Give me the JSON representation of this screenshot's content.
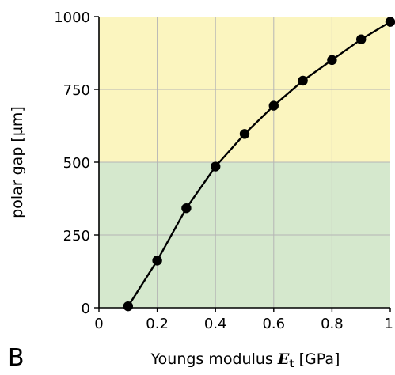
{
  "panel_label": "B",
  "chart_data": {
    "type": "line",
    "xlabel_prefix": "Youngs modulus ",
    "xlabel_symbol": "E",
    "xlabel_subscript": "t",
    "xlabel_unit": " [GPa]",
    "xlabel": "Youngs modulus Et [GPa]",
    "ylabel": "polar gap [µm]",
    "xlim": [
      0,
      1
    ],
    "ylim": [
      0,
      1000
    ],
    "xticks": [
      0,
      0.2,
      0.4,
      0.6,
      0.8,
      1
    ],
    "xtick_labels": [
      "0",
      "0.2",
      "0.4",
      "0.6",
      "0.8",
      "1"
    ],
    "yticks": [
      0,
      250,
      500,
      750,
      1000
    ],
    "ytick_labels": [
      "0",
      "250",
      "500",
      "750",
      "1000"
    ],
    "grid": true,
    "bands": [
      {
        "from": 0,
        "to": 500,
        "color": "#d5e8cd"
      },
      {
        "from": 500,
        "to": 1000,
        "color": "#fbf5bf"
      }
    ],
    "series": [
      {
        "color": "#000000",
        "marker": "circle",
        "x": [
          0.1,
          0.2,
          0.3,
          0.4,
          0.5,
          0.6,
          0.7,
          0.8,
          0.9,
          1.0
        ],
        "y": [
          5,
          162,
          342,
          485,
          597,
          694,
          780,
          851,
          922,
          982
        ]
      }
    ]
  }
}
